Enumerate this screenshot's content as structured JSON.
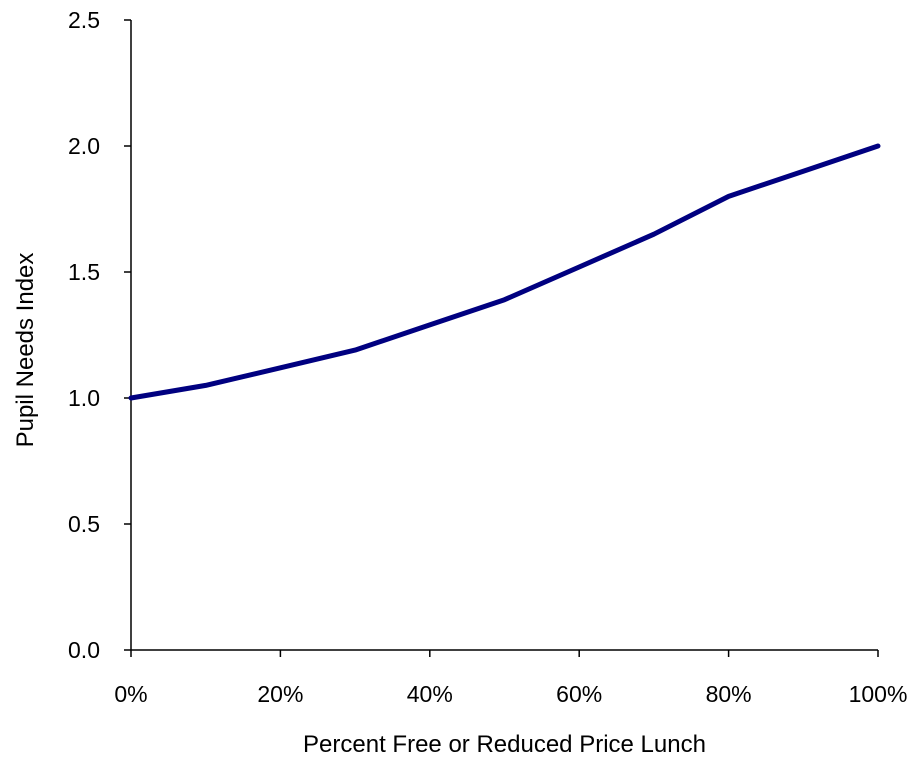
{
  "chart_data": {
    "type": "line",
    "title": "",
    "xlabel": "Percent Free or Reduced Price Lunch",
    "ylabel": "Pupil Needs Index",
    "x": [
      0,
      10,
      20,
      30,
      40,
      50,
      60,
      70,
      80,
      90,
      100
    ],
    "series": [
      {
        "values": [
          1.0,
          1.05,
          1.12,
          1.19,
          1.29,
          1.39,
          1.52,
          1.65,
          1.8,
          1.9,
          2.0
        ],
        "color": "#000080"
      }
    ],
    "xlim": [
      0,
      100
    ],
    "ylim": [
      0,
      2.5
    ],
    "x_ticks": [
      0,
      20,
      40,
      60,
      80,
      100
    ],
    "x_tick_labels": [
      "0%",
      "20%",
      "40%",
      "60%",
      "80%",
      "100%"
    ],
    "y_ticks": [
      0,
      0.5,
      1.0,
      1.5,
      2.0,
      2.5
    ],
    "y_tick_labels": [
      "0.0",
      "0.5",
      "1.0",
      "1.5",
      "2.0",
      "2.5"
    ],
    "grid": false,
    "legend": "none"
  }
}
